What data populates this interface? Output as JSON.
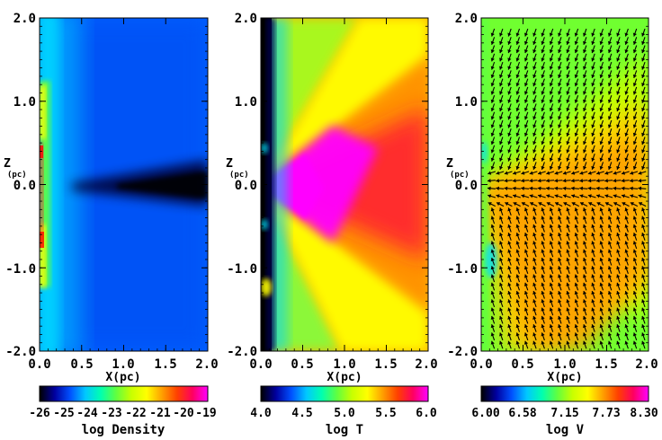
{
  "chart_data": [
    {
      "type": "heatmap",
      "quantity": "density",
      "xlabel": "X(pc)",
      "ylabel": "Z",
      "ylabel_unit": "(pc)",
      "xlim": [
        0.0,
        2.0
      ],
      "ylim": [
        -2.0,
        2.0
      ],
      "x_ticks": [
        "0.0",
        "0.5",
        "1.0",
        "1.5",
        "2.0"
      ],
      "y_ticks": [
        "2.0",
        "1.0",
        "0.0",
        "-1.0",
        "-2.0"
      ],
      "colorbar": {
        "title": "log Density",
        "range": [
          -26,
          -19
        ],
        "ticks": [
          "-26",
          "-25",
          "-24",
          "-23",
          "-22",
          "-21",
          "-20",
          "-19"
        ]
      }
    },
    {
      "type": "heatmap",
      "quantity": "temperature",
      "xlabel": "X(pc)",
      "xlim": [
        0.0,
        2.0
      ],
      "ylim": [
        -2.0,
        2.0
      ],
      "x_ticks": [
        "0.0",
        "0.5",
        "1.0",
        "1.5",
        "2.0"
      ],
      "y_ticks": [
        "2.0",
        "1.0",
        "0.0",
        "-1.0",
        "-2.0"
      ],
      "colorbar": {
        "title": "log T",
        "range": [
          4.0,
          6.0
        ],
        "ticks": [
          "4.0",
          "4.5",
          "5.0",
          "5.5",
          "6.0"
        ]
      }
    },
    {
      "type": "heatmap",
      "quantity": "velocity",
      "xlabel": "X(pc)",
      "xlim": [
        0.0,
        2.0
      ],
      "ylim": [
        -2.0,
        2.0
      ],
      "x_ticks": [
        "0.0",
        "0.5",
        "1.0",
        "1.5",
        "2.0"
      ],
      "y_ticks": [
        "2.0",
        "1.0",
        "0.0",
        "-1.0",
        "-2.0"
      ],
      "velocity_vectors": true,
      "colorbar": {
        "title": "log V",
        "range": [
          6.0,
          8.3
        ],
        "ticks": [
          "6.00",
          "6.58",
          "7.15",
          "7.73",
          "8.30"
        ]
      }
    }
  ],
  "colormap": [
    "#000000",
    "#0000a0",
    "#0050ff",
    "#00c8ff",
    "#00ffb0",
    "#60ff40",
    "#c8ff00",
    "#ffff00",
    "#ffa000",
    "#ff4000",
    "#ff0060",
    "#ff00ff"
  ]
}
